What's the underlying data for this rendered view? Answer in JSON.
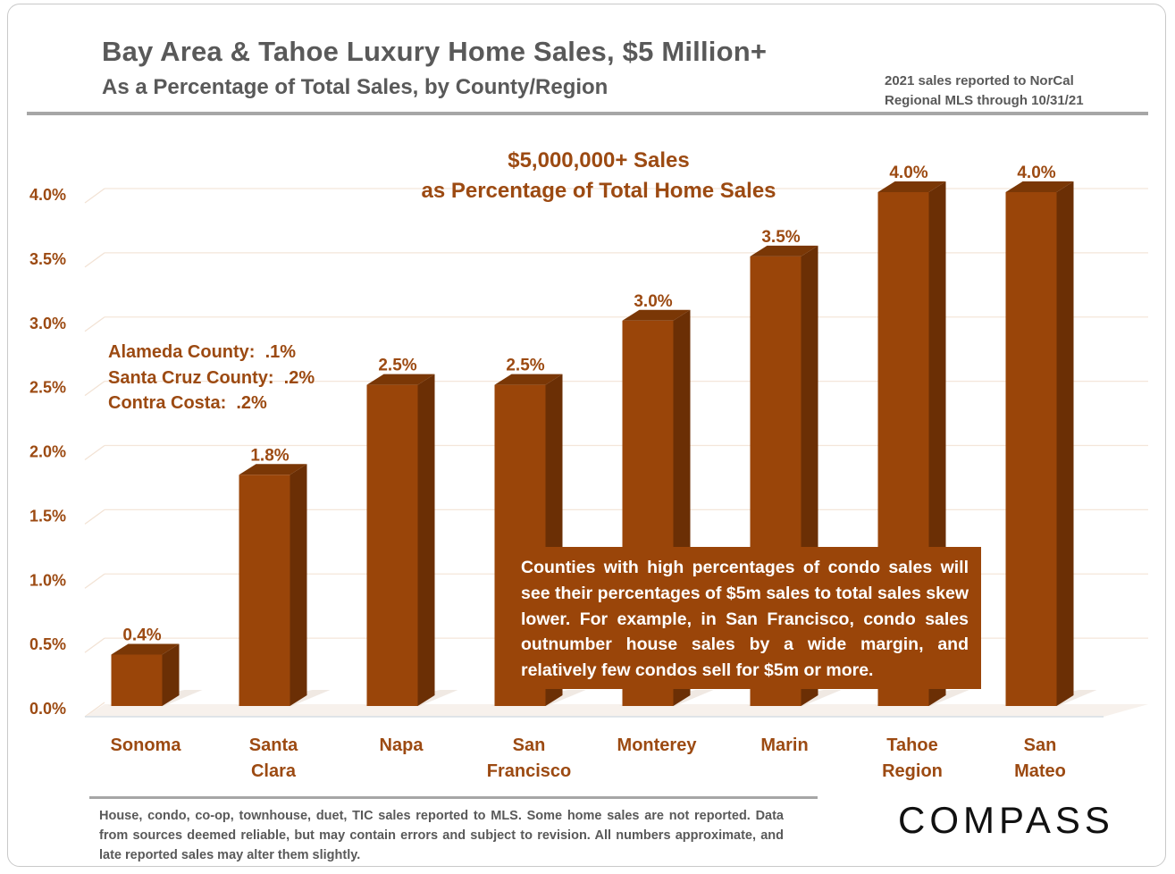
{
  "header": {
    "title": "Bay Area & Tahoe Luxury Home Sales, $5 Million+",
    "subtitle": "As a Percentage of Total Sales, by County/Region",
    "note": "2021 sales reported to NorCal Regional MLS through 10/31/21"
  },
  "chart_data": {
    "type": "bar",
    "heading_line1": "$5,000,000+ Sales",
    "heading_line2": "as Percentage of Total Home Sales",
    "categories": [
      [
        "Sonoma"
      ],
      [
        "Santa",
        "Clara"
      ],
      [
        "Napa"
      ],
      [
        "San",
        "Francisco"
      ],
      [
        "Monterey"
      ],
      [
        "Marin"
      ],
      [
        "Tahoe",
        "Region"
      ],
      [
        "San",
        "Mateo"
      ]
    ],
    "values": [
      0.4,
      1.8,
      2.5,
      2.5,
      3.0,
      3.5,
      4.0,
      4.0
    ],
    "data_labels": [
      "0.4%",
      "1.8%",
      "2.5%",
      "2.5%",
      "3.0%",
      "3.5%",
      "4.0%",
      "4.0%"
    ],
    "y_ticks": [
      0,
      0.5,
      1.0,
      1.5,
      2.0,
      2.5,
      3.0,
      3.5,
      4.0
    ],
    "y_tick_labels": [
      "0.0%",
      "0.5%",
      "1.0%",
      "1.5%",
      "2.0%",
      "2.5%",
      "3.0%",
      "3.5%",
      "4.0%"
    ],
    "ylim": [
      0,
      4.0
    ],
    "grid": true,
    "bar_color": "#9a4509",
    "bar_side_color": "#6b2f05",
    "label_color": "#9c4a12",
    "side_notes": [
      "Alameda County:  .1%",
      "Santa Cruz County:  .2%",
      "Contra Costa:  .2%"
    ],
    "callout": "Counties with high percentages of condo sales will see their percentages of $5m sales to total sales skew lower. For example, in San Francisco, condo sales outnumber house sales by a wide margin, and relatively few condos sell for $5m or more."
  },
  "footer": {
    "text": "House, condo, co-op, townhouse, duet, TIC sales reported to MLS. Some home sales are not reported. Data from sources deemed reliable, but may contain errors and subject to revision. All numbers approximate, and late reported sales may alter them slightly.",
    "logo": "COMPASS"
  }
}
